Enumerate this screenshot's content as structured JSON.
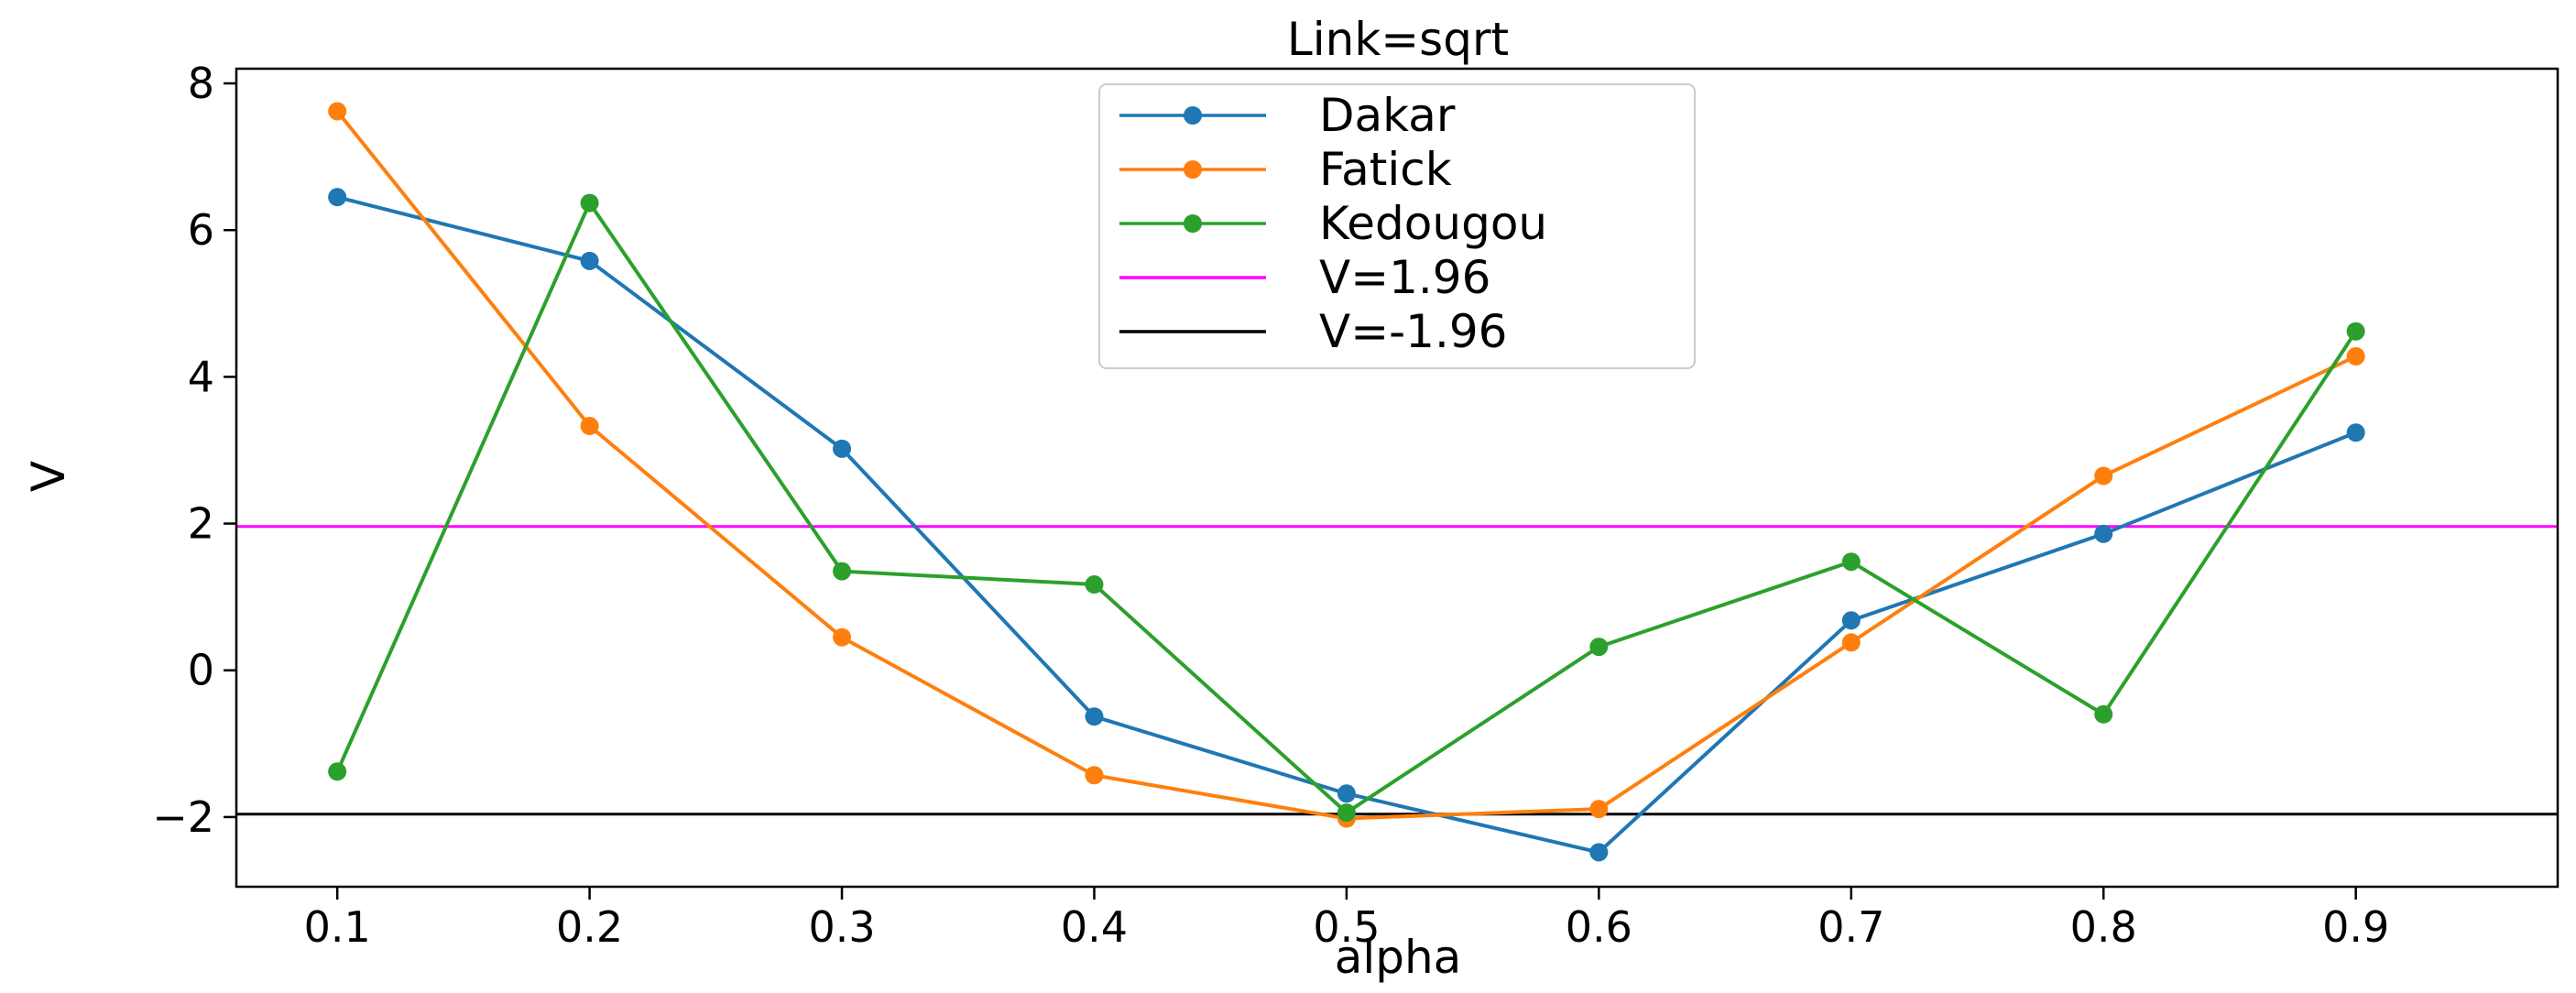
{
  "chart_data": {
    "type": "line",
    "title": "Link=sqrt",
    "xlabel": "alpha",
    "ylabel": "V",
    "x": [
      0.1,
      0.2,
      0.3,
      0.4,
      0.5,
      0.6,
      0.7,
      0.8,
      0.9
    ],
    "x_tick_labels": [
      "0.1",
      "0.2",
      "0.3",
      "0.4",
      "0.5",
      "0.6",
      "0.7",
      "0.8",
      "0.9"
    ],
    "y_ticks": [
      -2,
      0,
      2,
      4,
      6,
      8
    ],
    "y_tick_labels": [
      "−2",
      "0",
      "2",
      "4",
      "6",
      "8"
    ],
    "xlim": [
      0.06,
      0.98
    ],
    "ylim": [
      -2.95,
      8.2
    ],
    "grid": false,
    "legend_position": "top-center",
    "series": [
      {
        "name": "Dakar",
        "color": "#1f77b4",
        "marker": "circle",
        "values": [
          6.45,
          5.58,
          3.02,
          -0.63,
          -1.68,
          -2.48,
          0.68,
          1.86,
          3.24
        ]
      },
      {
        "name": "Fatick",
        "color": "#ff7f0e",
        "marker": "circle",
        "values": [
          7.62,
          3.33,
          0.45,
          -1.43,
          -2.02,
          -1.89,
          0.38,
          2.65,
          4.28
        ]
      },
      {
        "name": "Kedougou",
        "color": "#2ca02c",
        "marker": "circle",
        "values": [
          -1.38,
          6.37,
          1.35,
          1.17,
          -1.94,
          0.32,
          1.48,
          -0.6,
          4.62
        ]
      }
    ],
    "reference_lines": [
      {
        "name": "V=1.96",
        "y": 1.96,
        "color": "#ff00ff"
      },
      {
        "name": "V=-1.96",
        "y": -1.96,
        "color": "#000000"
      }
    ]
  }
}
